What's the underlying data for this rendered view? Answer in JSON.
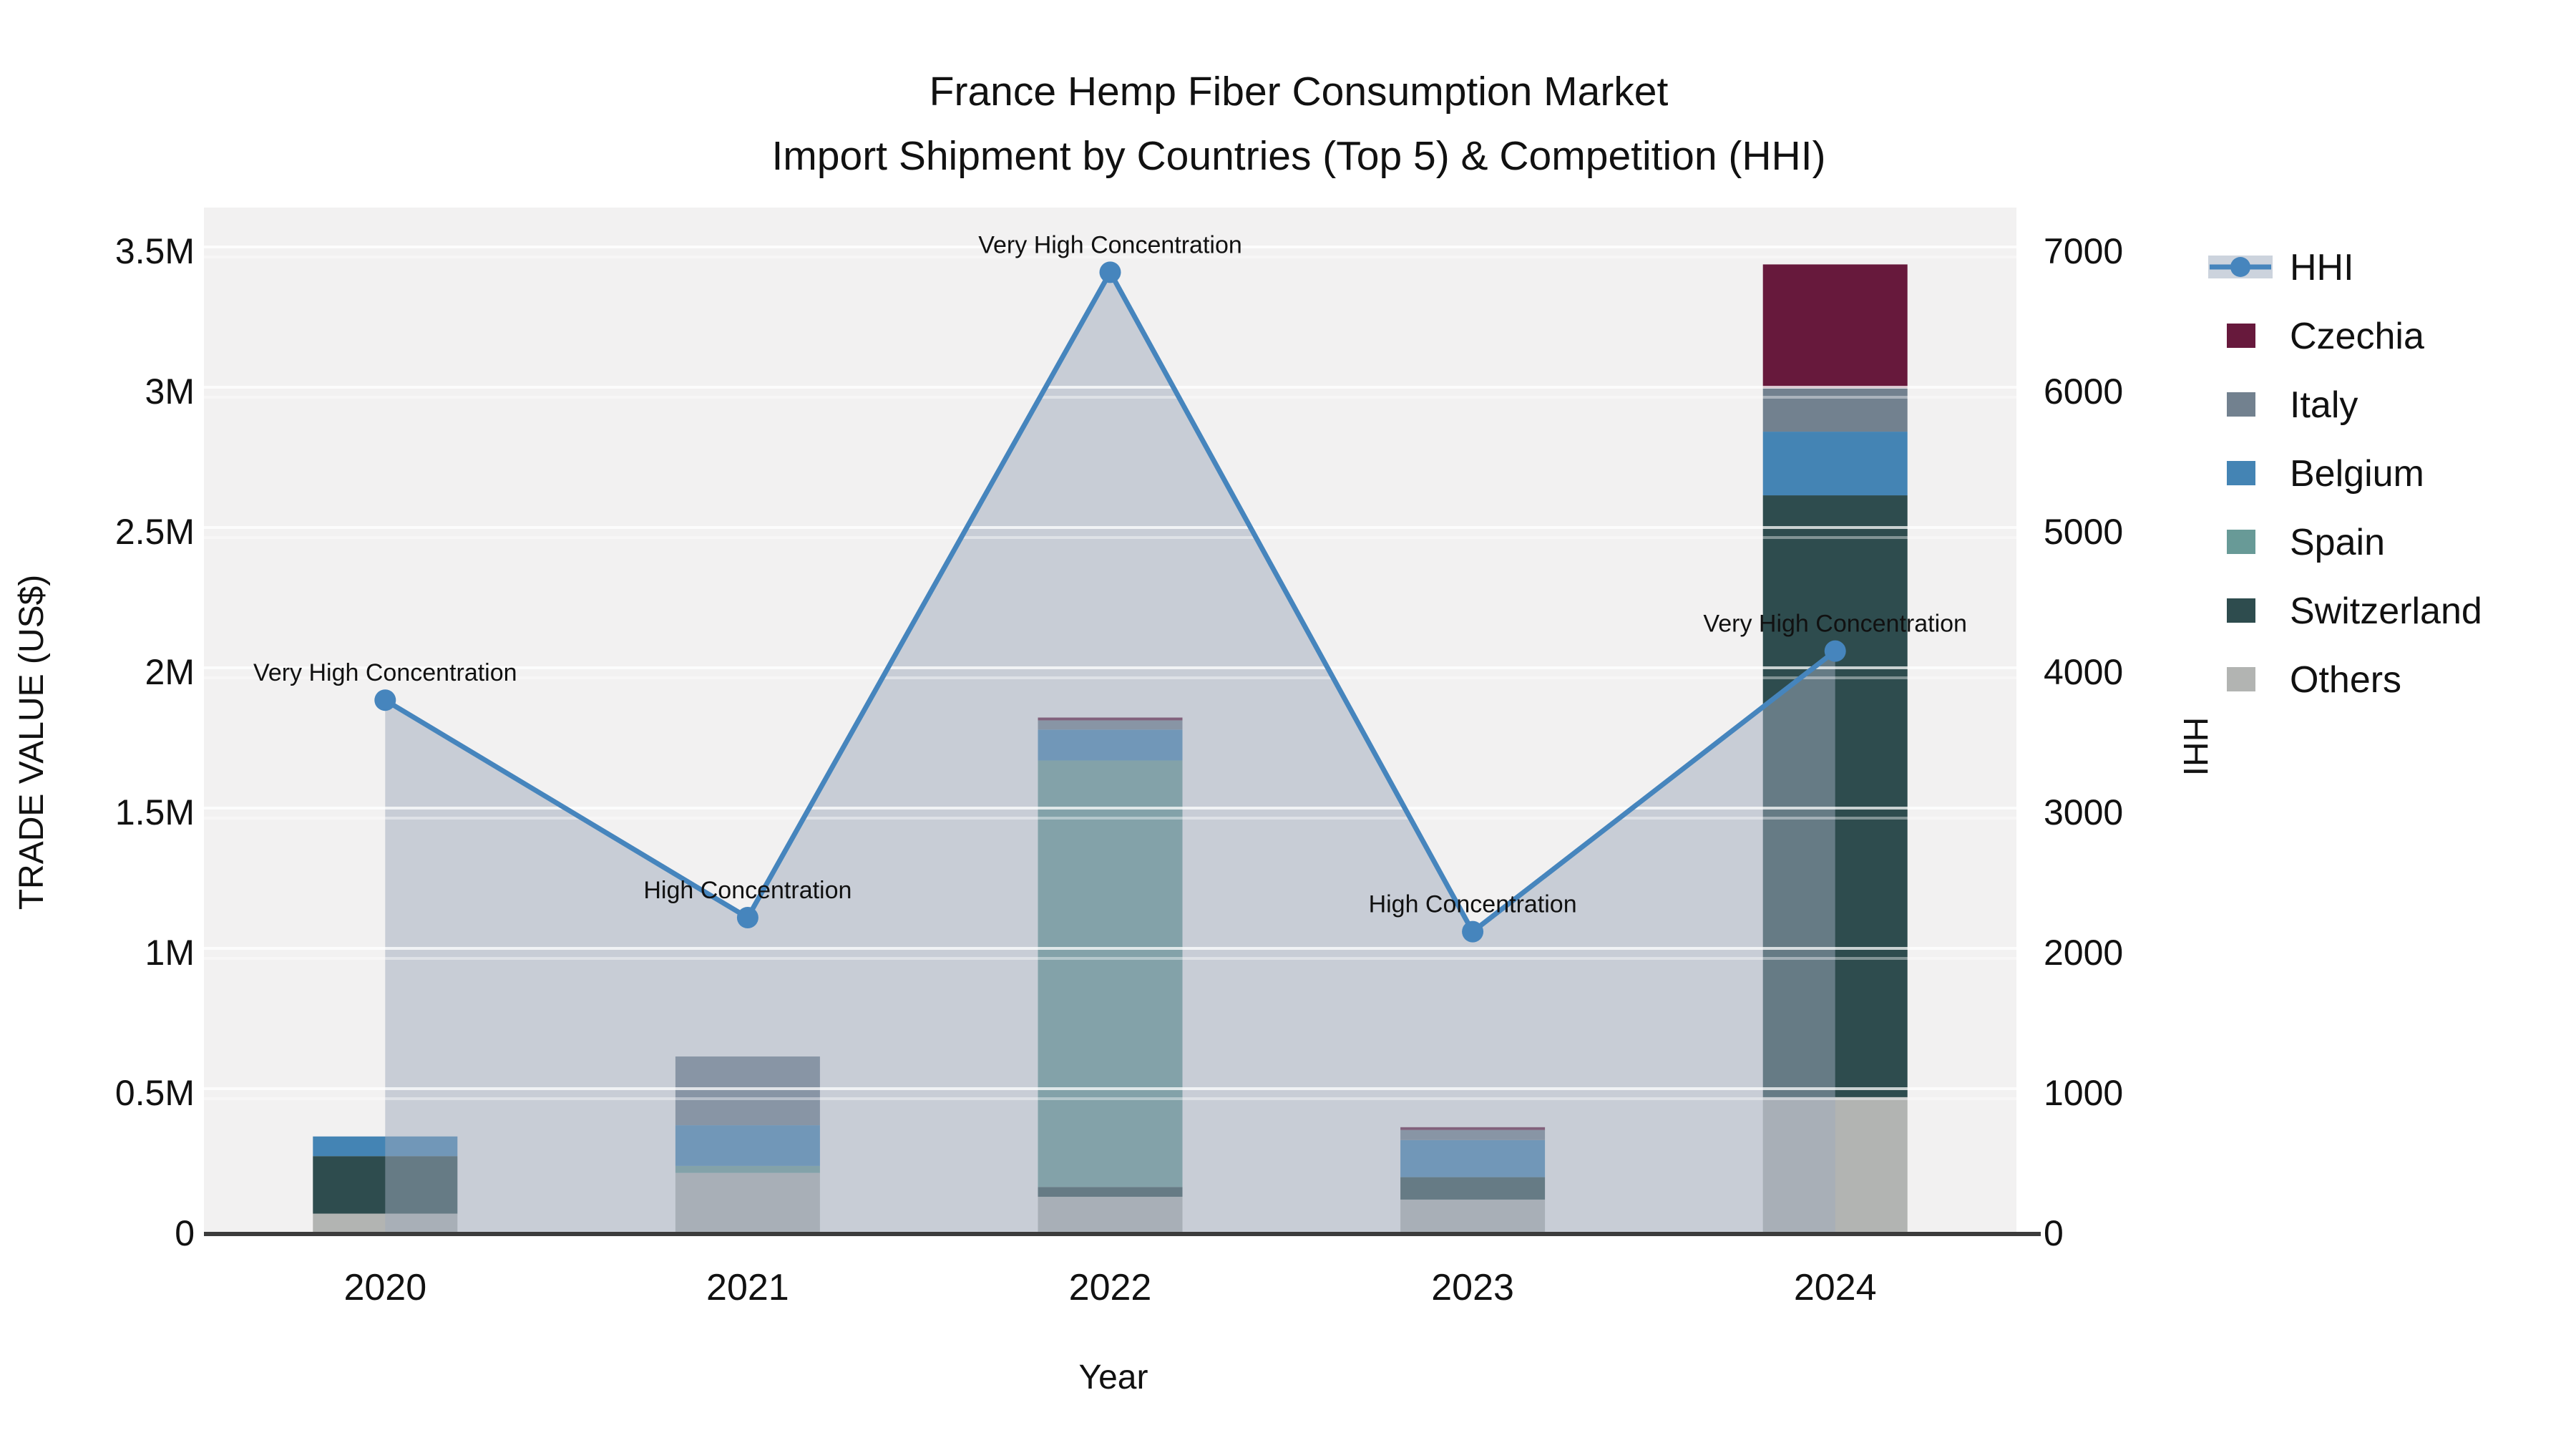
{
  "title": {
    "line1": "France Hemp Fiber Consumption Market",
    "line2": "Import Shipment by Countries (Top 5) & Competition (HHI)"
  },
  "axes": {
    "x": {
      "title": "Year",
      "categories": [
        "2020",
        "2021",
        "2022",
        "2023",
        "2024"
      ]
    },
    "y_left": {
      "title": "TRADE VALUE (US$)",
      "tick_labels": [
        "0",
        "0.5M",
        "1M",
        "1.5M",
        "2M",
        "2.5M",
        "3M",
        "3.5M"
      ],
      "tick_values": [
        0,
        500000,
        1000000,
        1500000,
        2000000,
        2500000,
        3000000,
        3500000
      ]
    },
    "y_right": {
      "title": "HHI",
      "tick_labels": [
        "0",
        "1000",
        "2000",
        "3000",
        "4000",
        "5000",
        "6000",
        "7000"
      ],
      "tick_values": [
        0,
        1000,
        2000,
        3000,
        4000,
        5000,
        6000,
        7000
      ]
    }
  },
  "legend": {
    "items": [
      {
        "label": "HHI",
        "type": "line",
        "color": "#4685bd"
      },
      {
        "label": "Czechia",
        "type": "square",
        "color": "#67193c"
      },
      {
        "label": "Italy",
        "type": "square",
        "color": "#72818f"
      },
      {
        "label": "Belgium",
        "type": "square",
        "color": "#4484b4"
      },
      {
        "label": "Spain",
        "type": "square",
        "color": "#689a97"
      },
      {
        "label": "Switzerland",
        "type": "square",
        "color": "#2e4c4e"
      },
      {
        "label": "Others",
        "type": "square",
        "color": "#b2b4b2"
      }
    ]
  },
  "colors": {
    "plot_bg": "#f2f1f1",
    "axis_line": "#3c3c3c",
    "grid_line": "#ffffff",
    "hhi_line": "#4685bd",
    "hhi_legend_band": "#ccd3dd",
    "area_fill": "rgba(158,170,188,0.5)",
    "text": "#111111"
  },
  "chart_data": {
    "type": "combo: stacked bar (left axis) + line with area (right axis)",
    "categories": [
      "2020",
      "2021",
      "2022",
      "2023",
      "2024"
    ],
    "bar_unit": "US$ trade value",
    "series": [
      {
        "name": "Others",
        "color": "#b2b4b2",
        "values": [
          70000,
          215000,
          130000,
          120000,
          485000
        ]
      },
      {
        "name": "Switzerland",
        "color": "#2e4c4e",
        "values": [
          205000,
          0,
          35000,
          80000,
          2145000
        ]
      },
      {
        "name": "Spain",
        "color": "#689a97",
        "values": [
          0,
          25000,
          1520000,
          0,
          0
        ]
      },
      {
        "name": "Belgium",
        "color": "#4484b4",
        "values": [
          70000,
          145000,
          110000,
          132000,
          227000
        ]
      },
      {
        "name": "Italy",
        "color": "#72818f",
        "values": [
          0,
          245000,
          33000,
          36000,
          156000
        ]
      },
      {
        "name": "Czechia",
        "color": "#67193c",
        "values": [
          0,
          0,
          10000,
          10000,
          440000
        ]
      }
    ],
    "bar_totals": [
      345000,
      630000,
      1838000,
      378000,
      3453000
    ],
    "line": {
      "name": "HHI",
      "axis": "right",
      "color": "#4685bd",
      "values": [
        3800,
        2250,
        6850,
        2150,
        4150
      ],
      "area": true
    },
    "annotations": [
      {
        "x": "2020",
        "text": "Very High Concentration"
      },
      {
        "x": "2021",
        "text": "High Concentration"
      },
      {
        "x": "2022",
        "text": "Very High Concentration"
      },
      {
        "x": "2023",
        "text": "High Concentration"
      },
      {
        "x": "2024",
        "text": "Very High Concentration"
      }
    ],
    "title": "France Hemp Fiber Consumption Market — Import Shipment by Countries (Top 5) & Competition (HHI)",
    "xlabel": "Year",
    "ylabel_left": "TRADE VALUE (US$)",
    "ylabel_right": "HHI",
    "ylim_left": [
      0,
      3500000
    ],
    "ylim_right": [
      0,
      7000
    ],
    "grid": true,
    "legend_position": "right"
  }
}
